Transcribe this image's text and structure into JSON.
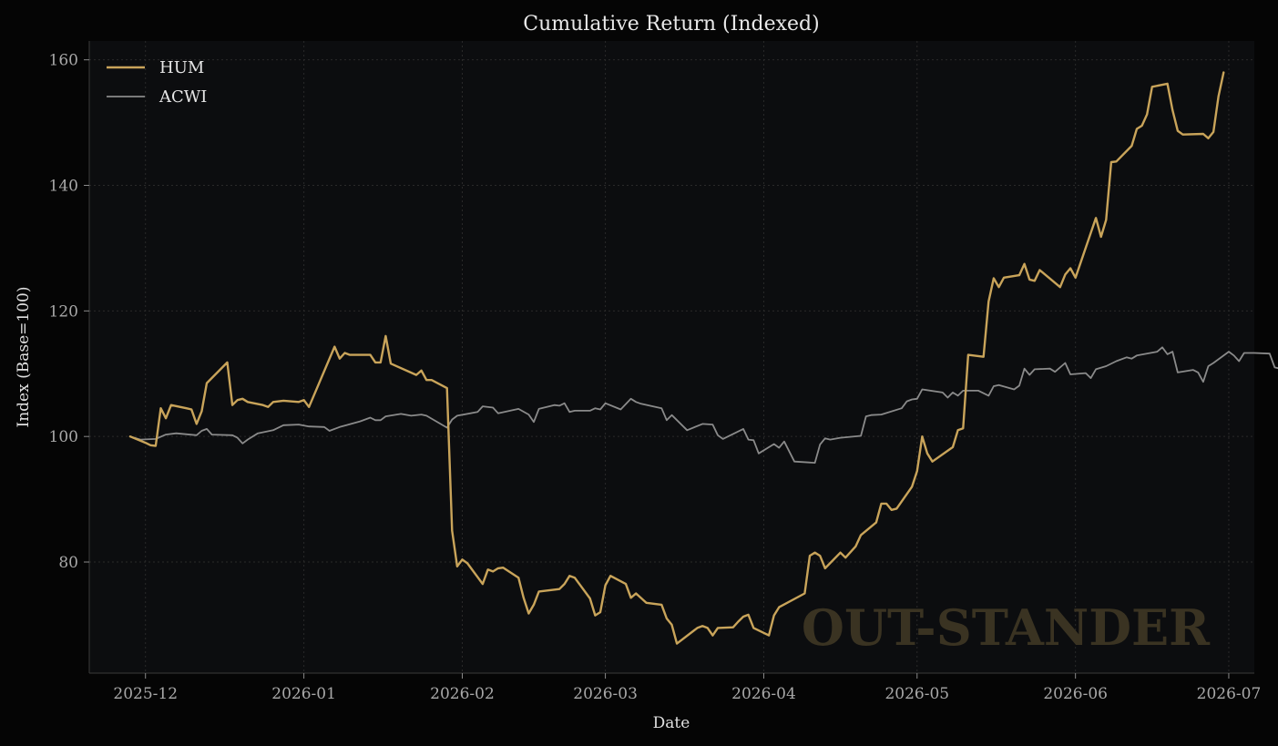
{
  "chart_data": {
    "type": "line",
    "title": "Cumulative Return (Indexed)",
    "xlabel": "Date",
    "ylabel": "Index (Base=100)",
    "ylim": [
      62.3,
      163
    ],
    "xlim": [
      "2025-11-20",
      "2026-07-06"
    ],
    "x_ticks": [
      "2025-12",
      "2026-01",
      "2026-02",
      "2026-03",
      "2026-04",
      "2026-05",
      "2026-06",
      "2026-07"
    ],
    "y_ticks": [
      80,
      100,
      120,
      140,
      160
    ],
    "grid": true,
    "legend_placement": "top-left",
    "watermark": "OUT-STANDER",
    "colors": {
      "background": "#050505",
      "plot_background": "#0c0d0f",
      "HUM": "#c9a45a",
      "ACWI": "#8a8a8a"
    },
    "series": [
      {
        "name": "HUM",
        "points": [
          [
            "2025-11-28",
            100
          ],
          [
            "2025-12-01",
            99
          ],
          [
            "2025-12-02",
            98.6
          ],
          [
            "2025-12-03",
            98.5
          ],
          [
            "2025-12-04",
            104.5
          ],
          [
            "2025-12-05",
            102.9
          ],
          [
            "2025-12-06",
            105
          ],
          [
            "2025-12-09",
            104.5
          ],
          [
            "2025-12-10",
            104.3
          ],
          [
            "2025-12-11",
            102
          ],
          [
            "2025-12-12",
            104
          ],
          [
            "2025-12-13",
            108.5
          ],
          [
            "2025-12-17",
            111.8
          ],
          [
            "2025-12-18",
            105
          ],
          [
            "2025-12-19",
            105.8
          ],
          [
            "2025-12-20",
            106
          ],
          [
            "2025-12-21",
            105.5
          ],
          [
            "2025-12-24",
            105
          ],
          [
            "2025-12-25",
            104.7
          ],
          [
            "2025-12-26",
            105.5
          ],
          [
            "2025-12-28",
            105.7
          ],
          [
            "2025-12-31",
            105.5
          ],
          [
            "2026-01-01",
            105.8
          ],
          [
            "2026-01-02",
            104.7
          ],
          [
            "2026-01-07",
            114.3
          ],
          [
            "2026-01-08",
            112.4
          ],
          [
            "2026-01-09",
            113.3
          ],
          [
            "2026-01-10",
            113
          ],
          [
            "2026-01-14",
            113
          ],
          [
            "2026-01-15",
            111.8
          ],
          [
            "2026-01-16",
            111.8
          ],
          [
            "2026-01-17",
            116
          ],
          [
            "2026-01-18",
            111.6
          ],
          [
            "2026-01-23",
            109.8
          ],
          [
            "2026-01-24",
            110.5
          ],
          [
            "2026-01-25",
            109
          ],
          [
            "2026-01-26",
            109
          ],
          [
            "2026-01-29",
            107.7
          ],
          [
            "2026-01-30",
            85
          ],
          [
            "2026-01-31",
            79.3
          ],
          [
            "2026-02-01",
            80.4
          ],
          [
            "2026-02-02",
            79.8
          ],
          [
            "2026-02-05",
            76.5
          ],
          [
            "2026-02-06",
            78.8
          ],
          [
            "2026-02-07",
            78.5
          ],
          [
            "2026-02-08",
            79
          ],
          [
            "2026-02-09",
            79.1
          ],
          [
            "2026-02-12",
            77.5
          ],
          [
            "2026-02-13",
            74.3
          ],
          [
            "2026-02-14",
            71.8
          ],
          [
            "2026-02-15",
            73.2
          ],
          [
            "2026-02-16",
            75.3
          ],
          [
            "2026-02-20",
            75.7
          ],
          [
            "2026-02-21",
            76.5
          ],
          [
            "2026-02-22",
            77.8
          ],
          [
            "2026-02-23",
            77.5
          ],
          [
            "2026-02-26",
            74.2
          ],
          [
            "2026-02-27",
            71.5
          ],
          [
            "2026-02-28",
            72
          ],
          [
            "2026-03-01",
            76.3
          ],
          [
            "2026-03-02",
            77.8
          ],
          [
            "2026-03-05",
            76.5
          ],
          [
            "2026-03-06",
            74.3
          ],
          [
            "2026-03-07",
            75
          ],
          [
            "2026-03-09",
            73.5
          ],
          [
            "2026-03-12",
            73.2
          ],
          [
            "2026-03-13",
            71
          ],
          [
            "2026-03-14",
            70
          ],
          [
            "2026-03-15",
            67
          ],
          [
            "2026-03-19",
            69.5
          ],
          [
            "2026-03-20",
            69.8
          ],
          [
            "2026-03-21",
            69.5
          ],
          [
            "2026-03-22",
            68.3
          ],
          [
            "2026-03-23",
            69.5
          ],
          [
            "2026-03-26",
            69.6
          ],
          [
            "2026-03-27",
            70.5
          ],
          [
            "2026-03-28",
            71.3
          ],
          [
            "2026-03-29",
            71.6
          ],
          [
            "2026-03-30",
            69.5
          ],
          [
            "2026-04-02",
            68.3
          ],
          [
            "2026-04-03",
            71.5
          ],
          [
            "2026-04-04",
            72.8
          ],
          [
            "2026-04-09",
            75
          ],
          [
            "2026-04-10",
            81
          ],
          [
            "2026-04-11",
            81.5
          ],
          [
            "2026-04-12",
            81
          ],
          [
            "2026-04-13",
            79
          ],
          [
            "2026-04-16",
            81.5
          ],
          [
            "2026-04-17",
            80.7
          ],
          [
            "2026-04-19",
            82.5
          ],
          [
            "2026-04-20",
            84.3
          ],
          [
            "2026-04-23",
            86.3
          ],
          [
            "2026-04-24",
            89.3
          ],
          [
            "2026-04-25",
            89.3
          ],
          [
            "2026-04-26",
            88.3
          ],
          [
            "2026-04-27",
            88.5
          ],
          [
            "2026-04-30",
            92
          ],
          [
            "2026-05-01",
            94.5
          ],
          [
            "2026-05-02",
            100
          ],
          [
            "2026-05-03",
            97.3
          ],
          [
            "2026-05-04",
            96
          ],
          [
            "2026-05-08",
            98.3
          ],
          [
            "2026-05-09",
            101
          ],
          [
            "2026-05-10",
            101.3
          ],
          [
            "2026-05-11",
            113
          ],
          [
            "2026-05-14",
            112.7
          ],
          [
            "2026-05-15",
            121.5
          ],
          [
            "2026-05-16",
            125.2
          ],
          [
            "2026-05-17",
            123.8
          ],
          [
            "2026-05-18",
            125.3
          ],
          [
            "2026-05-21",
            125.7
          ],
          [
            "2026-05-22",
            127.5
          ],
          [
            "2026-05-23",
            125
          ],
          [
            "2026-05-24",
            124.8
          ],
          [
            "2026-05-25",
            126.5
          ],
          [
            "2026-05-29",
            123.8
          ],
          [
            "2026-05-30",
            125.8
          ],
          [
            "2026-05-31",
            126.8
          ],
          [
            "2026-06-01",
            125.3
          ],
          [
            "2026-06-05",
            134.8
          ],
          [
            "2026-06-06",
            131.8
          ],
          [
            "2026-06-07",
            134.5
          ],
          [
            "2026-06-08",
            143.7
          ],
          [
            "2026-06-09",
            143.8
          ],
          [
            "2026-06-12",
            146.3
          ],
          [
            "2026-06-13",
            149
          ],
          [
            "2026-06-14",
            149.5
          ],
          [
            "2026-06-15",
            151.3
          ],
          [
            "2026-06-16",
            155.7
          ],
          [
            "2026-06-19",
            156.2
          ],
          [
            "2026-06-20",
            152
          ],
          [
            "2026-06-21",
            148.7
          ],
          [
            "2026-06-22",
            148.1
          ],
          [
            "2026-06-26",
            148.2
          ],
          [
            "2026-06-27",
            147.5
          ],
          [
            "2026-06-28",
            148.5
          ],
          [
            "2026-06-29",
            154.2
          ],
          [
            "2026-06-30",
            158
          ]
        ]
      },
      {
        "name": "ACWI",
        "points": [
          [
            "2025-11-28",
            100
          ],
          [
            "2025-11-30",
            99.5
          ],
          [
            "2025-12-03",
            99.6
          ],
          [
            "2025-12-05",
            100.3
          ],
          [
            "2025-12-07",
            100.5
          ],
          [
            "2025-12-11",
            100.2
          ],
          [
            "2025-12-12",
            100.9
          ],
          [
            "2025-12-13",
            101.2
          ],
          [
            "2025-12-14",
            100.3
          ],
          [
            "2025-12-18",
            100.2
          ],
          [
            "2025-12-19",
            99.8
          ],
          [
            "2025-12-20",
            98.9
          ],
          [
            "2025-12-21",
            99.5
          ],
          [
            "2025-12-23",
            100.5
          ],
          [
            "2025-12-26",
            101
          ],
          [
            "2025-12-28",
            101.8
          ],
          [
            "2025-12-31",
            101.9
          ],
          [
            "2026-01-02",
            101.6
          ],
          [
            "2026-01-05",
            101.5
          ],
          [
            "2026-01-06",
            100.9
          ],
          [
            "2026-01-08",
            101.5
          ],
          [
            "2026-01-12",
            102.4
          ],
          [
            "2026-01-14",
            103
          ],
          [
            "2026-01-15",
            102.6
          ],
          [
            "2026-01-16",
            102.6
          ],
          [
            "2026-01-17",
            103.2
          ],
          [
            "2026-01-20",
            103.6
          ],
          [
            "2026-01-22",
            103.3
          ],
          [
            "2026-01-24",
            103.5
          ],
          [
            "2026-01-25",
            103.3
          ],
          [
            "2026-01-29",
            101.4
          ],
          [
            "2026-01-30",
            102.7
          ],
          [
            "2026-01-31",
            103.3
          ],
          [
            "2026-02-04",
            103.9
          ],
          [
            "2026-02-05",
            104.8
          ],
          [
            "2026-02-07",
            104.6
          ],
          [
            "2026-02-08",
            103.7
          ],
          [
            "2026-02-12",
            104.4
          ],
          [
            "2026-02-14",
            103.5
          ],
          [
            "2026-02-15",
            102.3
          ],
          [
            "2026-02-16",
            104.4
          ],
          [
            "2026-02-19",
            105
          ],
          [
            "2026-02-20",
            104.9
          ],
          [
            "2026-02-21",
            105.3
          ],
          [
            "2026-02-22",
            103.9
          ],
          [
            "2026-02-23",
            104.1
          ],
          [
            "2026-02-26",
            104.1
          ],
          [
            "2026-02-27",
            104.5
          ],
          [
            "2026-02-28",
            104.3
          ],
          [
            "2026-03-01",
            105.3
          ],
          [
            "2026-03-04",
            104.3
          ],
          [
            "2026-03-06",
            106
          ],
          [
            "2026-03-07",
            105.5
          ],
          [
            "2026-03-08",
            105.2
          ],
          [
            "2026-03-12",
            104.5
          ],
          [
            "2026-03-13",
            102.6
          ],
          [
            "2026-03-14",
            103.4
          ],
          [
            "2026-03-17",
            101
          ],
          [
            "2026-03-20",
            102
          ],
          [
            "2026-03-22",
            101.9
          ],
          [
            "2026-03-23",
            100.2
          ],
          [
            "2026-03-24",
            99.6
          ],
          [
            "2026-03-27",
            100.8
          ],
          [
            "2026-03-28",
            101.2
          ],
          [
            "2026-03-29",
            99.5
          ],
          [
            "2026-03-30",
            99.4
          ],
          [
            "2026-03-31",
            97.3
          ],
          [
            "2026-04-03",
            98.8
          ],
          [
            "2026-04-04",
            98.2
          ],
          [
            "2026-04-05",
            99.2
          ],
          [
            "2026-04-07",
            96
          ],
          [
            "2026-04-11",
            95.8
          ],
          [
            "2026-04-12",
            98.7
          ],
          [
            "2026-04-13",
            99.7
          ],
          [
            "2026-04-14",
            99.5
          ],
          [
            "2026-04-16",
            99.8
          ],
          [
            "2026-04-20",
            100.1
          ],
          [
            "2026-04-21",
            103.2
          ],
          [
            "2026-04-22",
            103.4
          ],
          [
            "2026-04-24",
            103.5
          ],
          [
            "2026-04-28",
            104.5
          ],
          [
            "2026-04-29",
            105.6
          ],
          [
            "2026-04-30",
            105.9
          ],
          [
            "2026-05-01",
            106
          ],
          [
            "2026-05-02",
            107.5
          ],
          [
            "2026-05-06",
            107
          ],
          [
            "2026-05-07",
            106.2
          ],
          [
            "2026-05-08",
            107
          ],
          [
            "2026-05-09",
            106.5
          ],
          [
            "2026-05-10",
            107.3
          ],
          [
            "2026-05-13",
            107.3
          ],
          [
            "2026-05-15",
            106.5
          ],
          [
            "2026-05-16",
            108
          ],
          [
            "2026-05-17",
            108.2
          ],
          [
            "2026-05-20",
            107.5
          ],
          [
            "2026-05-21",
            108.1
          ],
          [
            "2026-05-22",
            110.8
          ],
          [
            "2026-05-23",
            109.8
          ],
          [
            "2026-05-24",
            110.7
          ],
          [
            "2026-05-27",
            110.8
          ],
          [
            "2026-05-28",
            110.3
          ],
          [
            "2026-05-30",
            111.7
          ],
          [
            "2026-05-31",
            109.9
          ],
          [
            "2026-06-03",
            110.1
          ],
          [
            "2026-06-04",
            109.3
          ],
          [
            "2026-06-05",
            110.7
          ],
          [
            "2026-06-07",
            111.2
          ],
          [
            "2026-06-09",
            112
          ],
          [
            "2026-06-11",
            112.6
          ],
          [
            "2026-06-12",
            112.4
          ],
          [
            "2026-06-13",
            112.9
          ],
          [
            "2026-06-17",
            113.5
          ],
          [
            "2026-06-18",
            114.2
          ],
          [
            "2026-06-19",
            113.1
          ],
          [
            "2026-06-20",
            113.5
          ],
          [
            "2026-06-21",
            110.2
          ],
          [
            "2026-06-24",
            110.6
          ],
          [
            "2026-06-25",
            110.2
          ],
          [
            "2026-06-26",
            108.7
          ],
          [
            "2026-06-27",
            111.2
          ],
          [
            "2026-06-28",
            111.7
          ],
          [
            "2026-07-01",
            113.5
          ],
          [
            "2026-07-02",
            112.9
          ],
          [
            "2026-07-03",
            112
          ],
          [
            "2026-07-04",
            113.3
          ],
          [
            "2026-07-06",
            113.3
          ],
          [
            "2026-07-09",
            113.2
          ],
          [
            "2026-07-10",
            111
          ],
          [
            "2026-07-11",
            110.8
          ],
          [
            "2026-07-12",
            111.2
          ],
          [
            "2026-07-13",
            110.8
          ]
        ]
      }
    ]
  }
}
